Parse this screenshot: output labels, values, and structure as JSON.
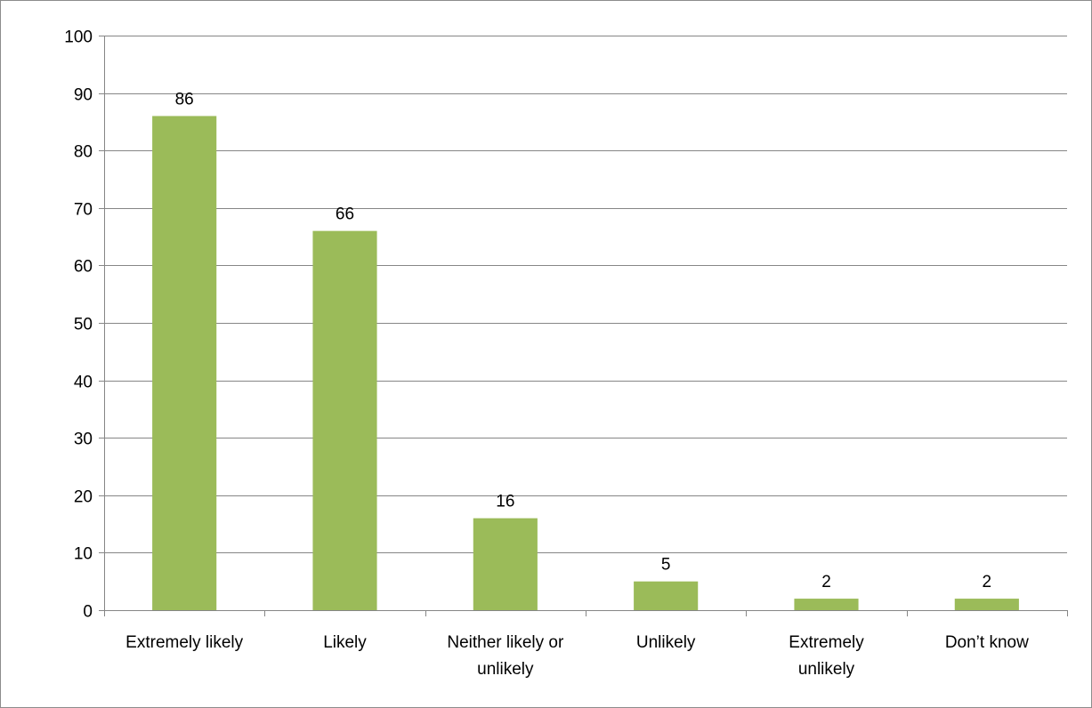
{
  "chart_data": {
    "type": "bar",
    "title": "",
    "xlabel": "",
    "ylabel": "",
    "categories": [
      [
        "Extremely likely"
      ],
      [
        "Likely"
      ],
      [
        "Neither likely or",
        "unlikely"
      ],
      [
        "Unlikely"
      ],
      [
        "Extremely",
        "unlikely"
      ],
      [
        "Don’t know"
      ]
    ],
    "values": [
      86,
      66,
      16,
      5,
      2,
      2
    ],
    "ylim": [
      0,
      100
    ],
    "yticks": [
      0,
      10,
      20,
      30,
      40,
      50,
      60,
      70,
      80,
      90,
      100
    ],
    "grid": true,
    "data_labels": true,
    "legend": "none",
    "colors": {
      "bar": "#9bbb59",
      "grid": "#868686",
      "axis": "#868686",
      "text": "#000000"
    }
  }
}
